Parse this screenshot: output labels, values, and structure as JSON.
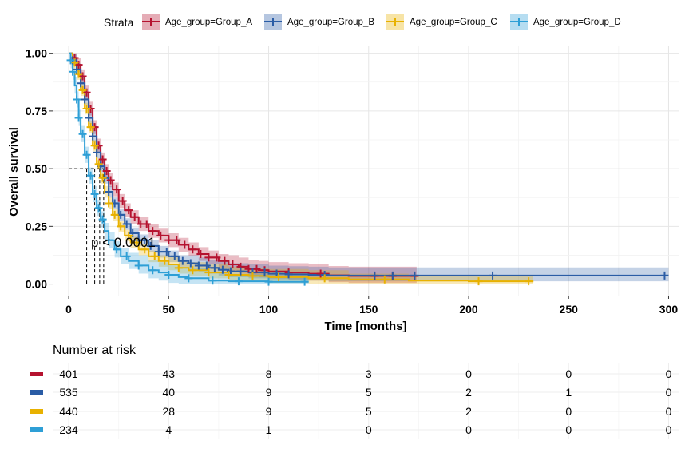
{
  "chart_data": {
    "type": "kaplan-meier survival curve",
    "xlabel": "Time [months]",
    "ylabel": "Overall survival",
    "xlim": [
      -8,
      305
    ],
    "ylim": [
      -0.05,
      1.03
    ],
    "x_ticks": [
      "0",
      "50",
      "100",
      "150",
      "200",
      "250",
      "300"
    ],
    "y_ticks": [
      "0.00",
      "0.25",
      "0.50",
      "0.75",
      "1.00"
    ],
    "grid": true,
    "legend_title": "Strata",
    "legend_position": "top",
    "p_value_text": "p < 0.0001",
    "median_line_y": 0.5,
    "medians": [
      9,
      13,
      15.5,
      17.5
    ],
    "series": [
      {
        "name": "Age_group=Group_A",
        "color": "#B5122F",
        "points": [
          [
            0,
            1
          ],
          [
            2,
            0.98
          ],
          [
            4,
            0.95
          ],
          [
            6,
            0.9
          ],
          [
            8,
            0.83
          ],
          [
            10,
            0.76
          ],
          [
            12,
            0.68
          ],
          [
            14,
            0.6
          ],
          [
            16,
            0.54
          ],
          [
            18,
            0.49
          ],
          [
            20,
            0.45
          ],
          [
            22,
            0.41
          ],
          [
            25,
            0.36
          ],
          [
            28,
            0.32
          ],
          [
            31,
            0.29
          ],
          [
            35,
            0.26
          ],
          [
            40,
            0.23
          ],
          [
            45,
            0.21
          ],
          [
            50,
            0.19
          ],
          [
            55,
            0.17
          ],
          [
            60,
            0.15
          ],
          [
            65,
            0.13
          ],
          [
            70,
            0.115
          ],
          [
            75,
            0.1
          ],
          [
            80,
            0.085
          ],
          [
            85,
            0.075
          ],
          [
            90,
            0.065
          ],
          [
            95,
            0.06
          ],
          [
            100,
            0.055
          ],
          [
            110,
            0.05
          ],
          [
            120,
            0.045
          ],
          [
            130,
            0.038
          ],
          [
            140,
            0.035
          ],
          [
            174,
            0.035
          ]
        ],
        "band": 0.03,
        "censor_times": [
          3,
          5,
          7,
          9,
          11,
          13,
          15,
          17,
          19,
          21,
          24,
          27,
          30,
          33,
          36,
          39,
          42,
          46,
          50,
          54,
          58,
          62,
          66,
          70,
          74,
          78,
          82,
          86,
          90,
          94,
          98,
          110,
          126,
          153,
          162,
          173
        ]
      },
      {
        "name": "Age_group=Group_B",
        "color": "#2A5CA5",
        "points": [
          [
            0,
            1
          ],
          [
            2,
            0.97
          ],
          [
            4,
            0.93
          ],
          [
            6,
            0.87
          ],
          [
            8,
            0.8
          ],
          [
            10,
            0.72
          ],
          [
            12,
            0.64
          ],
          [
            14,
            0.57
          ],
          [
            16,
            0.51
          ],
          [
            18,
            0.46
          ],
          [
            20,
            0.4
          ],
          [
            22,
            0.35
          ],
          [
            25,
            0.3
          ],
          [
            28,
            0.26
          ],
          [
            31,
            0.22
          ],
          [
            35,
            0.19
          ],
          [
            40,
            0.165
          ],
          [
            45,
            0.14
          ],
          [
            50,
            0.12
          ],
          [
            55,
            0.1
          ],
          [
            60,
            0.09
          ],
          [
            65,
            0.08
          ],
          [
            70,
            0.07
          ],
          [
            75,
            0.062
          ],
          [
            80,
            0.055
          ],
          [
            90,
            0.05
          ],
          [
            100,
            0.045
          ],
          [
            110,
            0.042
          ],
          [
            120,
            0.04
          ],
          [
            130,
            0.037
          ],
          [
            300,
            0.037
          ]
        ],
        "band": 0.025,
        "censor_times": [
          2,
          4,
          6,
          8,
          10,
          12,
          14,
          16,
          18,
          20,
          23,
          26,
          29,
          32,
          35,
          38,
          41,
          45,
          49,
          53,
          57,
          61,
          65,
          69,
          73,
          77,
          81,
          86,
          92,
          98,
          104,
          110,
          128,
          153,
          162,
          173,
          212,
          298
        ]
      },
      {
        "name": "Age_group=Group_C",
        "color": "#E8B100",
        "points": [
          [
            0,
            1
          ],
          [
            2,
            0.96
          ],
          [
            4,
            0.91
          ],
          [
            6,
            0.84
          ],
          [
            8,
            0.76
          ],
          [
            10,
            0.68
          ],
          [
            12,
            0.6
          ],
          [
            14,
            0.52
          ],
          [
            16,
            0.46
          ],
          [
            18,
            0.4
          ],
          [
            20,
            0.35
          ],
          [
            22,
            0.3
          ],
          [
            25,
            0.25
          ],
          [
            28,
            0.21
          ],
          [
            31,
            0.18
          ],
          [
            35,
            0.15
          ],
          [
            40,
            0.12
          ],
          [
            45,
            0.1
          ],
          [
            50,
            0.085
          ],
          [
            55,
            0.07
          ],
          [
            60,
            0.06
          ],
          [
            70,
            0.05
          ],
          [
            80,
            0.04
          ],
          [
            90,
            0.035
          ],
          [
            100,
            0.03
          ],
          [
            120,
            0.025
          ],
          [
            140,
            0.02
          ],
          [
            170,
            0.015
          ],
          [
            200,
            0.012
          ],
          [
            232,
            0.008
          ]
        ],
        "band": 0.025,
        "censor_times": [
          3,
          5,
          7,
          9,
          11,
          13,
          15,
          17,
          20,
          23,
          26,
          30,
          34,
          38,
          43,
          48,
          55,
          62,
          70,
          80,
          92,
          105,
          128,
          158,
          205,
          230
        ]
      },
      {
        "name": "Age_group=Group_D",
        "color": "#2E9FD6",
        "points": [
          [
            0,
            1
          ],
          [
            1,
            0.97
          ],
          [
            2,
            0.92
          ],
          [
            3,
            0.86
          ],
          [
            4,
            0.8
          ],
          [
            5,
            0.72
          ],
          [
            6,
            0.65
          ],
          [
            8,
            0.56
          ],
          [
            10,
            0.47
          ],
          [
            12,
            0.39
          ],
          [
            14,
            0.33
          ],
          [
            16,
            0.28
          ],
          [
            18,
            0.23
          ],
          [
            20,
            0.19
          ],
          [
            23,
            0.15
          ],
          [
            26,
            0.12
          ],
          [
            30,
            0.1
          ],
          [
            35,
            0.08
          ],
          [
            40,
            0.06
          ],
          [
            45,
            0.05
          ],
          [
            50,
            0.04
          ],
          [
            55,
            0.03
          ],
          [
            60,
            0.025
          ],
          [
            70,
            0.015
          ],
          [
            80,
            0.012
          ],
          [
            100,
            0.01
          ],
          [
            120,
            0.01
          ]
        ],
        "band": 0.035,
        "censor_times": [
          1,
          2,
          4,
          5,
          7,
          9,
          11,
          13,
          15,
          17,
          20,
          24,
          29,
          35,
          42,
          50,
          60,
          72,
          85,
          100,
          118
        ]
      }
    ],
    "risk_table": {
      "title": "Number at risk",
      "times": [
        0,
        50,
        100,
        150,
        200,
        250,
        300
      ],
      "rows": [
        {
          "color": "#B5122F",
          "values": [
            "401",
            "43",
            "8",
            "3",
            "0",
            "0",
            "0"
          ]
        },
        {
          "color": "#2A5CA5",
          "values": [
            "535",
            "40",
            "9",
            "5",
            "2",
            "1",
            "0"
          ]
        },
        {
          "color": "#E8B100",
          "values": [
            "440",
            "28",
            "9",
            "5",
            "2",
            "0",
            "0"
          ]
        },
        {
          "color": "#2E9FD6",
          "values": [
            "234",
            "4",
            "1",
            "0",
            "0",
            "0",
            "0"
          ]
        }
      ]
    }
  }
}
